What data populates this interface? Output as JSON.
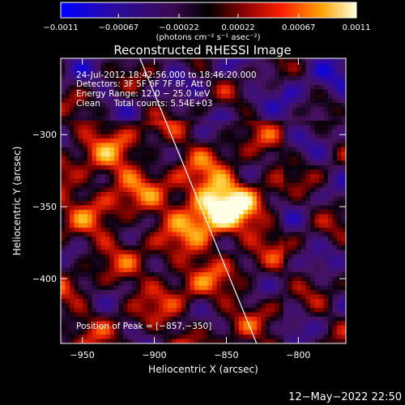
{
  "chart_data": {
    "type": "heatmap",
    "title": "Reconstructed RHESSI Image",
    "xlabel": "Heliocentric X (arcsec)",
    "ylabel": "Heliocentric Y (arcsec)",
    "xlim": [
      -965,
      -767
    ],
    "ylim": [
      -445,
      -247
    ],
    "xticks": [
      -950,
      -900,
      -850,
      -800
    ],
    "yticks": [
      -300,
      -350,
      -400
    ],
    "xtick_labels": [
      "−950",
      "−900",
      "−850",
      "−800"
    ],
    "ytick_labels": [
      "−300",
      "−350",
      "−400"
    ],
    "colorbar": {
      "range": [
        -0.0011,
        0.0011
      ],
      "ticks": [
        -0.0011,
        -0.00067,
        -0.00022,
        0.00022,
        0.00067,
        0.0011
      ],
      "tick_labels": [
        "−0.0011",
        "−0.00067",
        "−0.00022",
        "0.00022",
        "0.00067",
        "0.0011"
      ],
      "unit_label": "(photons cm⁻² s⁻¹ asec⁻²)"
    },
    "peak": {
      "x": -857,
      "y": -350
    },
    "limb_line": {
      "x1": -910,
      "y1": -247,
      "x2": -829,
      "y2": -445
    },
    "annotations": {
      "time_range": "24-Jul-2012 18:42:56.000 to 18:46:20.000",
      "detectors": "Detectors: 3F 5F 6F 7F 8F, Att 0",
      "energy_range": "Energy Range: 12.0 − 25.0 keV",
      "method": "Clean     Total counts: 5.54E+03",
      "peak_position": "Position of Peak = [−857,−350]"
    }
  },
  "timestamp": "12−May−2022 22:50",
  "colors": {
    "background": "#000000",
    "foreground": "#ffffff"
  }
}
